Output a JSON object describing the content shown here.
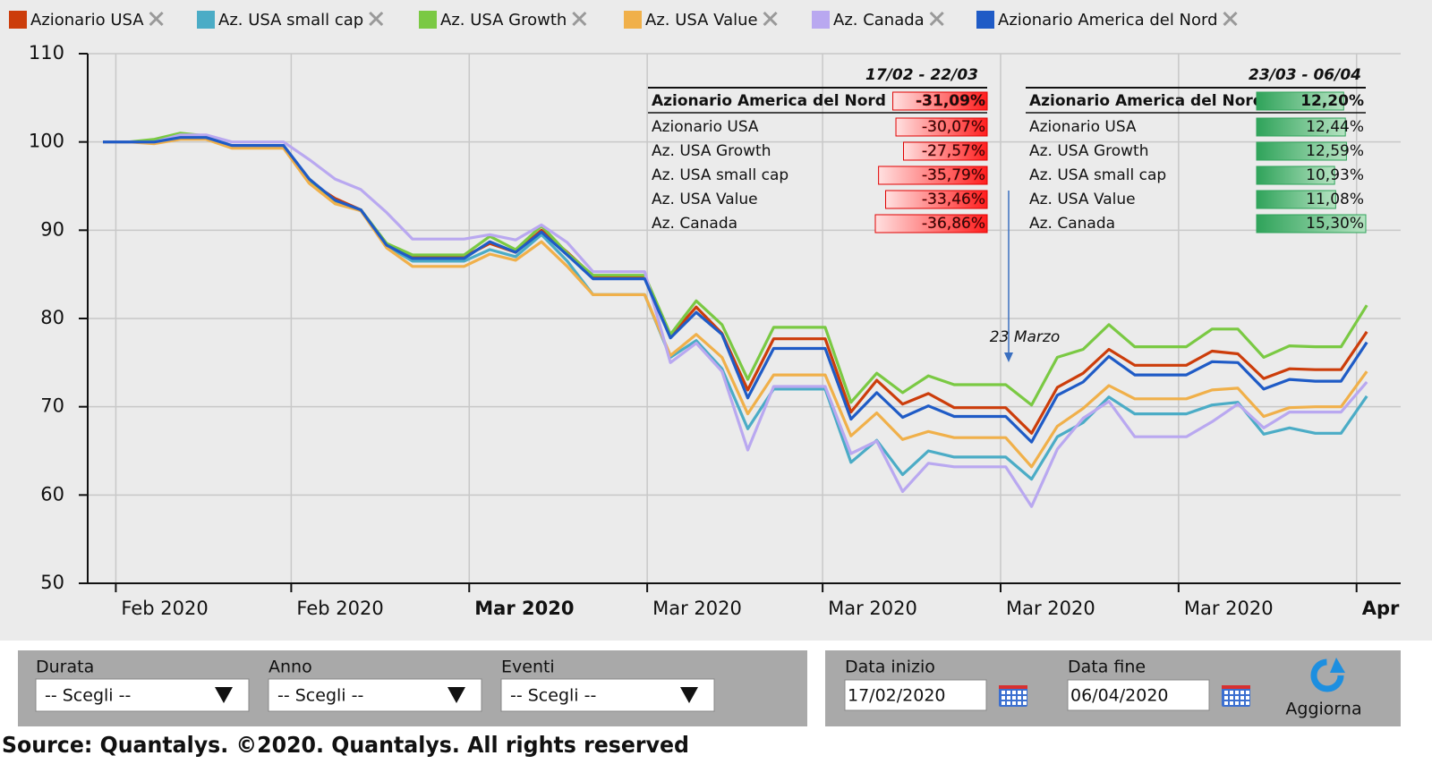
{
  "chart_data": {
    "type": "line",
    "legend_position": "top",
    "grid": true,
    "ylim": [
      50,
      110
    ],
    "yticks": [
      50,
      60,
      70,
      80,
      90,
      100,
      110
    ],
    "xlim": [
      -0.59,
      50.31
    ],
    "xticks": [
      {
        "value": 0.5,
        "label": "Feb 2020"
      },
      {
        "value": 7.3,
        "label": "Feb 2020"
      },
      {
        "value": 14.2,
        "label": "Mar 2020"
      },
      {
        "value": 21.1,
        "label": "Mar 2020"
      },
      {
        "value": 27.9,
        "label": "Mar 2020"
      },
      {
        "value": 34.8,
        "label": "Mar 2020"
      },
      {
        "value": 41.7,
        "label": "Mar 2020"
      },
      {
        "value": 48.6,
        "label": "Apr"
      }
    ],
    "x": [
      0,
      1,
      2,
      3,
      4,
      5,
      6,
      7,
      8,
      9,
      10,
      11,
      12,
      13,
      14,
      15,
      16,
      17,
      18,
      19,
      20,
      21,
      22,
      23,
      24,
      25,
      26,
      27,
      28,
      29,
      30,
      31,
      32,
      33,
      34,
      35,
      36,
      37,
      38,
      39,
      40,
      41,
      42,
      43,
      44,
      45,
      46,
      47,
      48,
      49
    ],
    "series": [
      {
        "name": "Azionario USA",
        "color": "#cc3d0b",
        "values": [
          100,
          100,
          100,
          100.5,
          100.5,
          99.5,
          99.5,
          99.5,
          95.5,
          93.6,
          92.3,
          88.4,
          87,
          87,
          87,
          88.5,
          87.5,
          90,
          87.5,
          84.8,
          84.8,
          84.8,
          78,
          81.3,
          78.3,
          71.9,
          77.7,
          77.7,
          77.7,
          69.4,
          73,
          70.3,
          71.5,
          69.9,
          69.9,
          69.9,
          67,
          72.2,
          73.8,
          76.5,
          74.7,
          74.7,
          74.7,
          76.3,
          76,
          73.2,
          74.3,
          74.2,
          74.2,
          78.5
        ]
      },
      {
        "name": "Az. USA small cap",
        "color": "#4bacc6",
        "values": [
          100,
          100,
          100,
          100.4,
          100.4,
          99.5,
          99.5,
          99.5,
          95.5,
          93.3,
          92.3,
          88.2,
          86.5,
          86.5,
          86.5,
          87.8,
          87,
          89.5,
          86.5,
          82.7,
          82.7,
          82.7,
          75.6,
          77.5,
          74.3,
          67.5,
          72,
          72,
          72,
          63.7,
          66.2,
          62.3,
          65,
          64.3,
          64.3,
          64.3,
          61.8,
          66.6,
          68.2,
          71.1,
          69.2,
          69.2,
          69.2,
          70.2,
          70.5,
          66.9,
          67.6,
          67,
          67,
          71.2
        ]
      },
      {
        "name": "Az. USA Growth",
        "color": "#7ac943",
        "values": [
          100,
          100,
          100.3,
          101,
          100.7,
          99.4,
          99.4,
          99.4,
          95.8,
          93,
          92.3,
          88.5,
          87.2,
          87.2,
          87.2,
          89.3,
          87.8,
          90.5,
          87.4,
          84.9,
          84.9,
          84.9,
          78.2,
          82,
          79.3,
          73.1,
          79,
          79,
          79,
          70.5,
          73.8,
          71.6,
          73.5,
          72.5,
          72.5,
          72.5,
          70.2,
          75.6,
          76.5,
          79.3,
          76.8,
          76.8,
          76.8,
          78.8,
          78.8,
          75.6,
          76.9,
          76.8,
          76.8,
          81.5
        ]
      },
      {
        "name": "Az. USA Value",
        "color": "#f0b04a",
        "values": [
          100,
          100,
          99.8,
          100.3,
          100.3,
          99.3,
          99.3,
          99.3,
          95.3,
          93,
          92.2,
          88,
          85.9,
          85.9,
          85.9,
          87.3,
          86.6,
          88.7,
          85.9,
          82.7,
          82.7,
          82.7,
          75.8,
          78.2,
          75.6,
          69.2,
          73.6,
          73.6,
          73.6,
          66.7,
          69.3,
          66.3,
          67.2,
          66.5,
          66.5,
          66.5,
          63.2,
          67.8,
          69.8,
          72.4,
          70.9,
          70.9,
          70.9,
          71.9,
          72.1,
          68.9,
          69.9,
          70,
          70,
          74
        ]
      },
      {
        "name": "Az. Canada",
        "color": "#b9a8f0",
        "values": [
          100,
          100,
          100,
          100.8,
          100.8,
          100,
          100,
          100,
          98,
          95.8,
          94.6,
          92,
          89,
          89,
          89,
          89.5,
          88.9,
          90.6,
          88.6,
          85.3,
          85.3,
          85.3,
          75,
          77.2,
          74,
          65.1,
          72.3,
          72.3,
          72.3,
          64.7,
          66.1,
          60.4,
          63.6,
          63.2,
          63.2,
          63.2,
          58.7,
          65.2,
          68.7,
          70.6,
          66.6,
          66.6,
          66.6,
          68.3,
          70.3,
          67.6,
          69.4,
          69.4,
          69.4,
          72.8
        ]
      },
      {
        "name": "Azionario America del Nord",
        "color": "#1f5bc6",
        "values": [
          100,
          100,
          100,
          100.5,
          100.5,
          99.6,
          99.6,
          99.6,
          95.8,
          93.4,
          92.3,
          88.3,
          86.8,
          86.8,
          86.8,
          88.7,
          87.5,
          89.8,
          87.2,
          84.5,
          84.5,
          84.5,
          77.8,
          80.7,
          78.2,
          71,
          76.6,
          76.6,
          76.6,
          68.6,
          71.6,
          68.8,
          70.1,
          68.9,
          68.9,
          68.9,
          66,
          71.3,
          72.8,
          75.7,
          73.6,
          73.6,
          73.6,
          75.1,
          75,
          72,
          73.1,
          72.9,
          72.9,
          77.3
        ]
      }
    ],
    "annotation": {
      "text": "23 Marzo",
      "x": 35
    },
    "tables": [
      {
        "period": "17/02 - 22/03",
        "color": "#ff2020",
        "rows": [
          {
            "name": "Azionario America del Nord",
            "value": -31.09,
            "label": "-31,09%"
          },
          {
            "name": "Azionario USA",
            "value": -30.07,
            "label": "-30,07%"
          },
          {
            "name": "Az. USA Growth",
            "value": -27.57,
            "label": "-27,57%"
          },
          {
            "name": "Az. USA small cap",
            "value": -35.79,
            "label": "-35,79%"
          },
          {
            "name": "Az. USA Value",
            "value": -33.46,
            "label": "-33,46%"
          },
          {
            "name": "Az. Canada",
            "value": -36.86,
            "label": "-36,86%"
          }
        ]
      },
      {
        "period": "23/03 - 06/04",
        "color": "#2fa35a",
        "rows": [
          {
            "name": "Azionario America del Nord",
            "value": 12.2,
            "label": "12,20%"
          },
          {
            "name": "Azionario USA",
            "value": 12.44,
            "label": "12,44%"
          },
          {
            "name": "Az. USA Growth",
            "value": 12.59,
            "label": "12,59%"
          },
          {
            "name": "Az. USA small cap",
            "value": 10.93,
            "label": "10,93%"
          },
          {
            "name": "Az. USA Value",
            "value": 11.08,
            "label": "11,08%"
          },
          {
            "name": "Az. Canada",
            "value": 15.3,
            "label": "15,30%"
          }
        ]
      }
    ]
  },
  "controls": {
    "filters": [
      {
        "label": "Durata",
        "value": "-- Scegli --"
      },
      {
        "label": "Anno",
        "value": "-- Scegli --"
      },
      {
        "label": "Eventi",
        "value": "-- Scegli --"
      }
    ],
    "dates": [
      {
        "label": "Data inizio",
        "value": "17/02/2020"
      },
      {
        "label": "Data fine",
        "value": "06/04/2020"
      }
    ],
    "button": "Aggiorna"
  },
  "source": "Source: Quantalys. ©2020. Quantalys. All rights reserved"
}
